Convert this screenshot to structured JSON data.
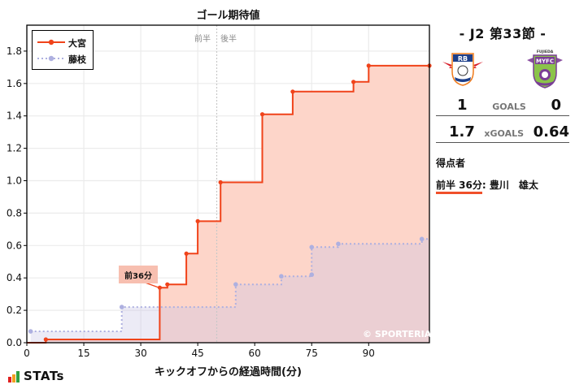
{
  "chart_title": "ゴール期待値",
  "x_axis_label": "キックオフからの経過時間(分)",
  "half_labels": {
    "first": "前半",
    "second": "後半"
  },
  "annotation": "前36分",
  "copyright": "© SPORTERIA",
  "brand": "STATs",
  "legend": [
    {
      "name": "大宮",
      "color": "#f0431a",
      "style": "solid"
    },
    {
      "name": "藤枝",
      "color": "#aeb0e0",
      "style": "dotted"
    }
  ],
  "match": {
    "round": "- J2 第33節 -",
    "home": {
      "name": "大宮",
      "crest": "RB OMIYA ARDIJA crest",
      "goals": "1",
      "xg": "1.7"
    },
    "away": {
      "name": "藤枝",
      "crest": "FUJIEDA MYFC crest",
      "goals": "0",
      "xg": "0.64"
    },
    "goals_label": "GOALS",
    "xg_label": "xGOALS"
  },
  "scorers": {
    "title": "得点者",
    "list": [
      {
        "time": "前半 36分",
        "player": ": 豊川　雄太"
      }
    ]
  },
  "chart_data": {
    "type": "line",
    "title": "ゴール期待値",
    "xlabel": "キックオフからの経過時間(分)",
    "ylabel": "",
    "xlim": [
      0,
      106
    ],
    "ylim": [
      0,
      1.96
    ],
    "x_ticks": [
      0,
      15,
      30,
      45,
      60,
      75,
      90
    ],
    "y_ticks": [
      0.0,
      0.2,
      0.4,
      0.6,
      0.8,
      1.0,
      1.2,
      1.4,
      1.6,
      1.8
    ],
    "grid": true,
    "legend_position": "upper left",
    "step": "post",
    "halftime_line_x": 50,
    "series": [
      {
        "name": "大宮",
        "color": "#f0431a",
        "points": [
          [
            0,
            0
          ],
          [
            5,
            0.02
          ],
          [
            35,
            0.34
          ],
          [
            37,
            0.36
          ],
          [
            42,
            0.55
          ],
          [
            45,
            0.75
          ],
          [
            51,
            0.99
          ],
          [
            62,
            1.41
          ],
          [
            70,
            1.55
          ],
          [
            86,
            1.61
          ],
          [
            90,
            1.71
          ],
          [
            106,
            1.71
          ]
        ]
      },
      {
        "name": "藤枝",
        "color": "#aeb0e0",
        "points": [
          [
            1,
            0.07
          ],
          [
            25,
            0.22
          ],
          [
            55,
            0.36
          ],
          [
            67,
            0.41
          ],
          [
            75,
            0.42
          ],
          [
            75,
            0.59
          ],
          [
            82,
            0.61
          ],
          [
            104,
            0.64
          ],
          [
            106,
            0.64
          ]
        ]
      }
    ],
    "annotations": [
      {
        "text": "前36分",
        "x": 36,
        "y": 0.34
      }
    ]
  }
}
